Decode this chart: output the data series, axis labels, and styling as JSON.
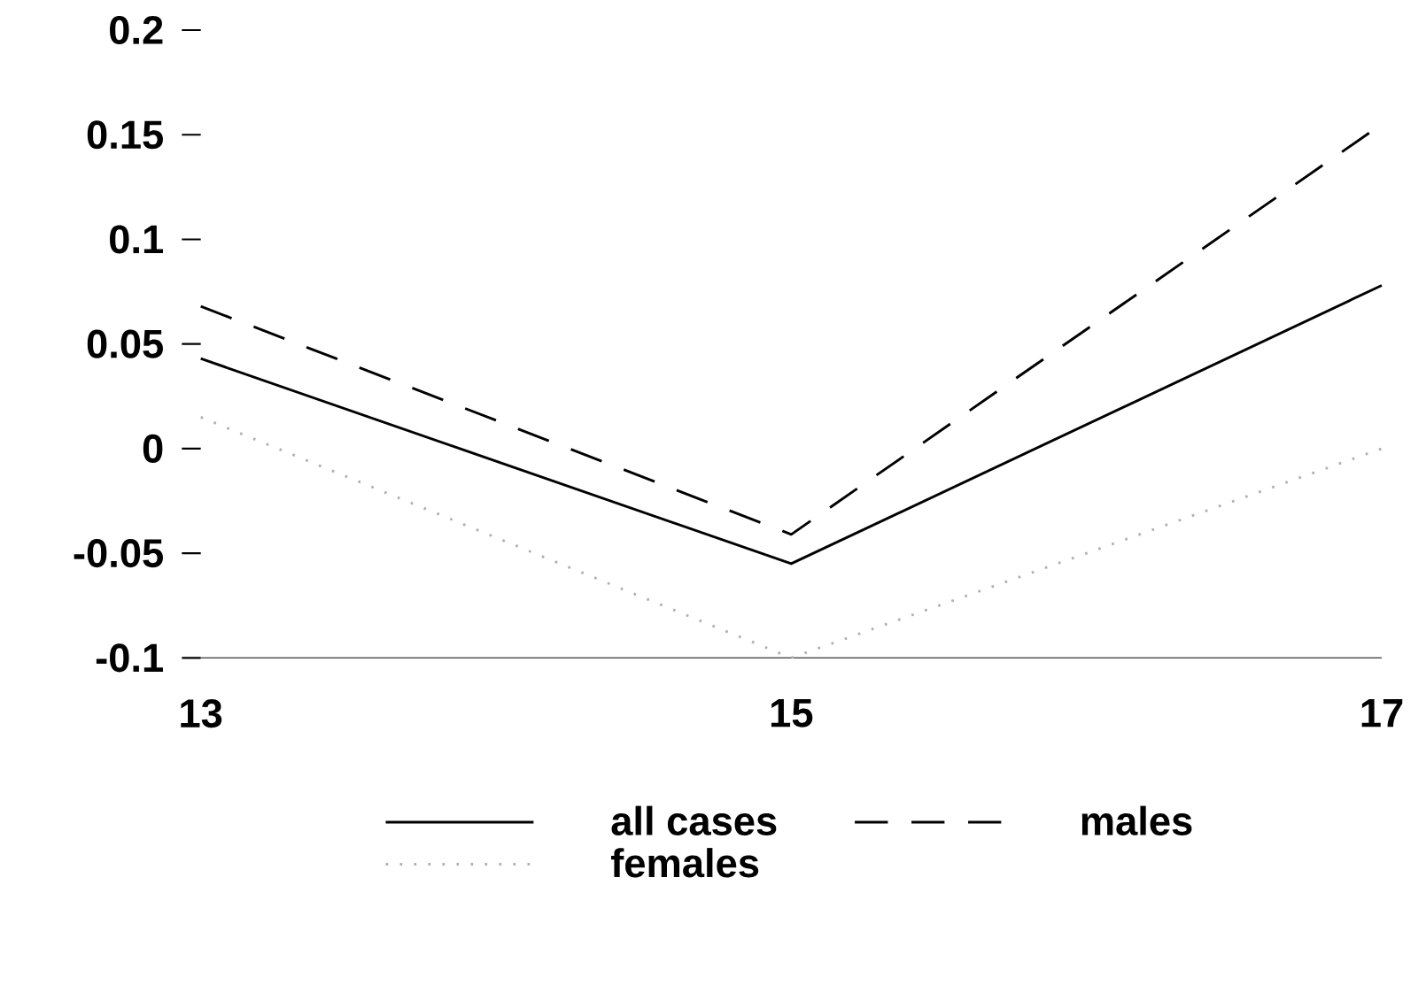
{
  "chart_data": {
    "type": "line",
    "x": [
      13,
      15,
      17
    ],
    "series": [
      {
        "name": "all cases",
        "color": "#000000",
        "line_style": "solid",
        "values": [
          0.043,
          -0.055,
          0.078
        ]
      },
      {
        "name": "males",
        "color": "#000000",
        "line_style": "dashed",
        "values": [
          0.068,
          -0.041,
          0.155
        ]
      },
      {
        "name": "females",
        "color": "#b0b0b0",
        "line_style": "dotted",
        "values": [
          0.015,
          -0.1,
          0.0
        ]
      }
    ],
    "xlim": [
      13,
      17
    ],
    "ylim": [
      -0.1,
      0.2
    ],
    "xticks": [
      13,
      15,
      17
    ],
    "yticks": [
      -0.1,
      -0.05,
      0,
      0.05,
      0.1,
      0.15,
      0.2
    ],
    "grid": false,
    "legend": "bottom"
  }
}
